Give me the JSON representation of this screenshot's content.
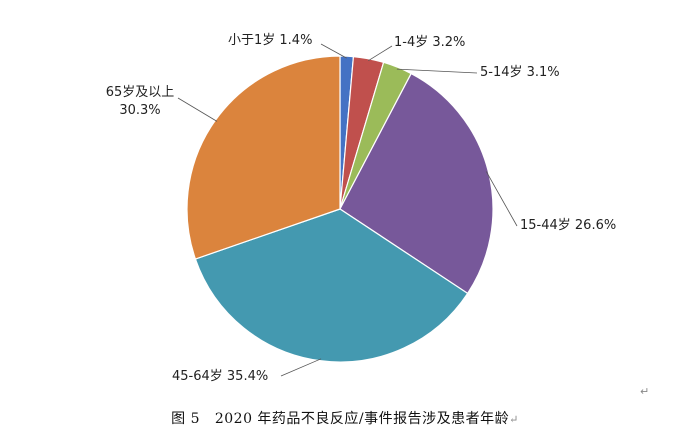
{
  "chart_data": {
    "type": "pie",
    "title": "",
    "slices": [
      {
        "label": "小于1岁",
        "value": 1.4,
        "value_text": "1.4%",
        "color": "#4472C4"
      },
      {
        "label": "1-4岁",
        "value": 3.2,
        "value_text": "3.2%",
        "color": "#C0504D"
      },
      {
        "label": "5-14岁",
        "value": 3.1,
        "value_text": "3.1%",
        "color": "#9BBB59"
      },
      {
        "label": "15-44岁",
        "value": 26.6,
        "value_text": "26.6%",
        "color": "#77589A"
      },
      {
        "label": "45-64岁",
        "value": 35.4,
        "value_text": "35.4%",
        "color": "#4499B0"
      },
      {
        "label": "65岁及以上",
        "value": 30.3,
        "value_text": "30.3%",
        "color": "#DB843D"
      }
    ],
    "start_position": "12 o'clock",
    "direction": "clockwise",
    "legend": "none"
  },
  "caption": {
    "figure_no": "图 5",
    "text": "2020 年药品不良反应/事件报告涉及患者年龄",
    "end_mark": "↵"
  },
  "paragraph_mark": "↵"
}
